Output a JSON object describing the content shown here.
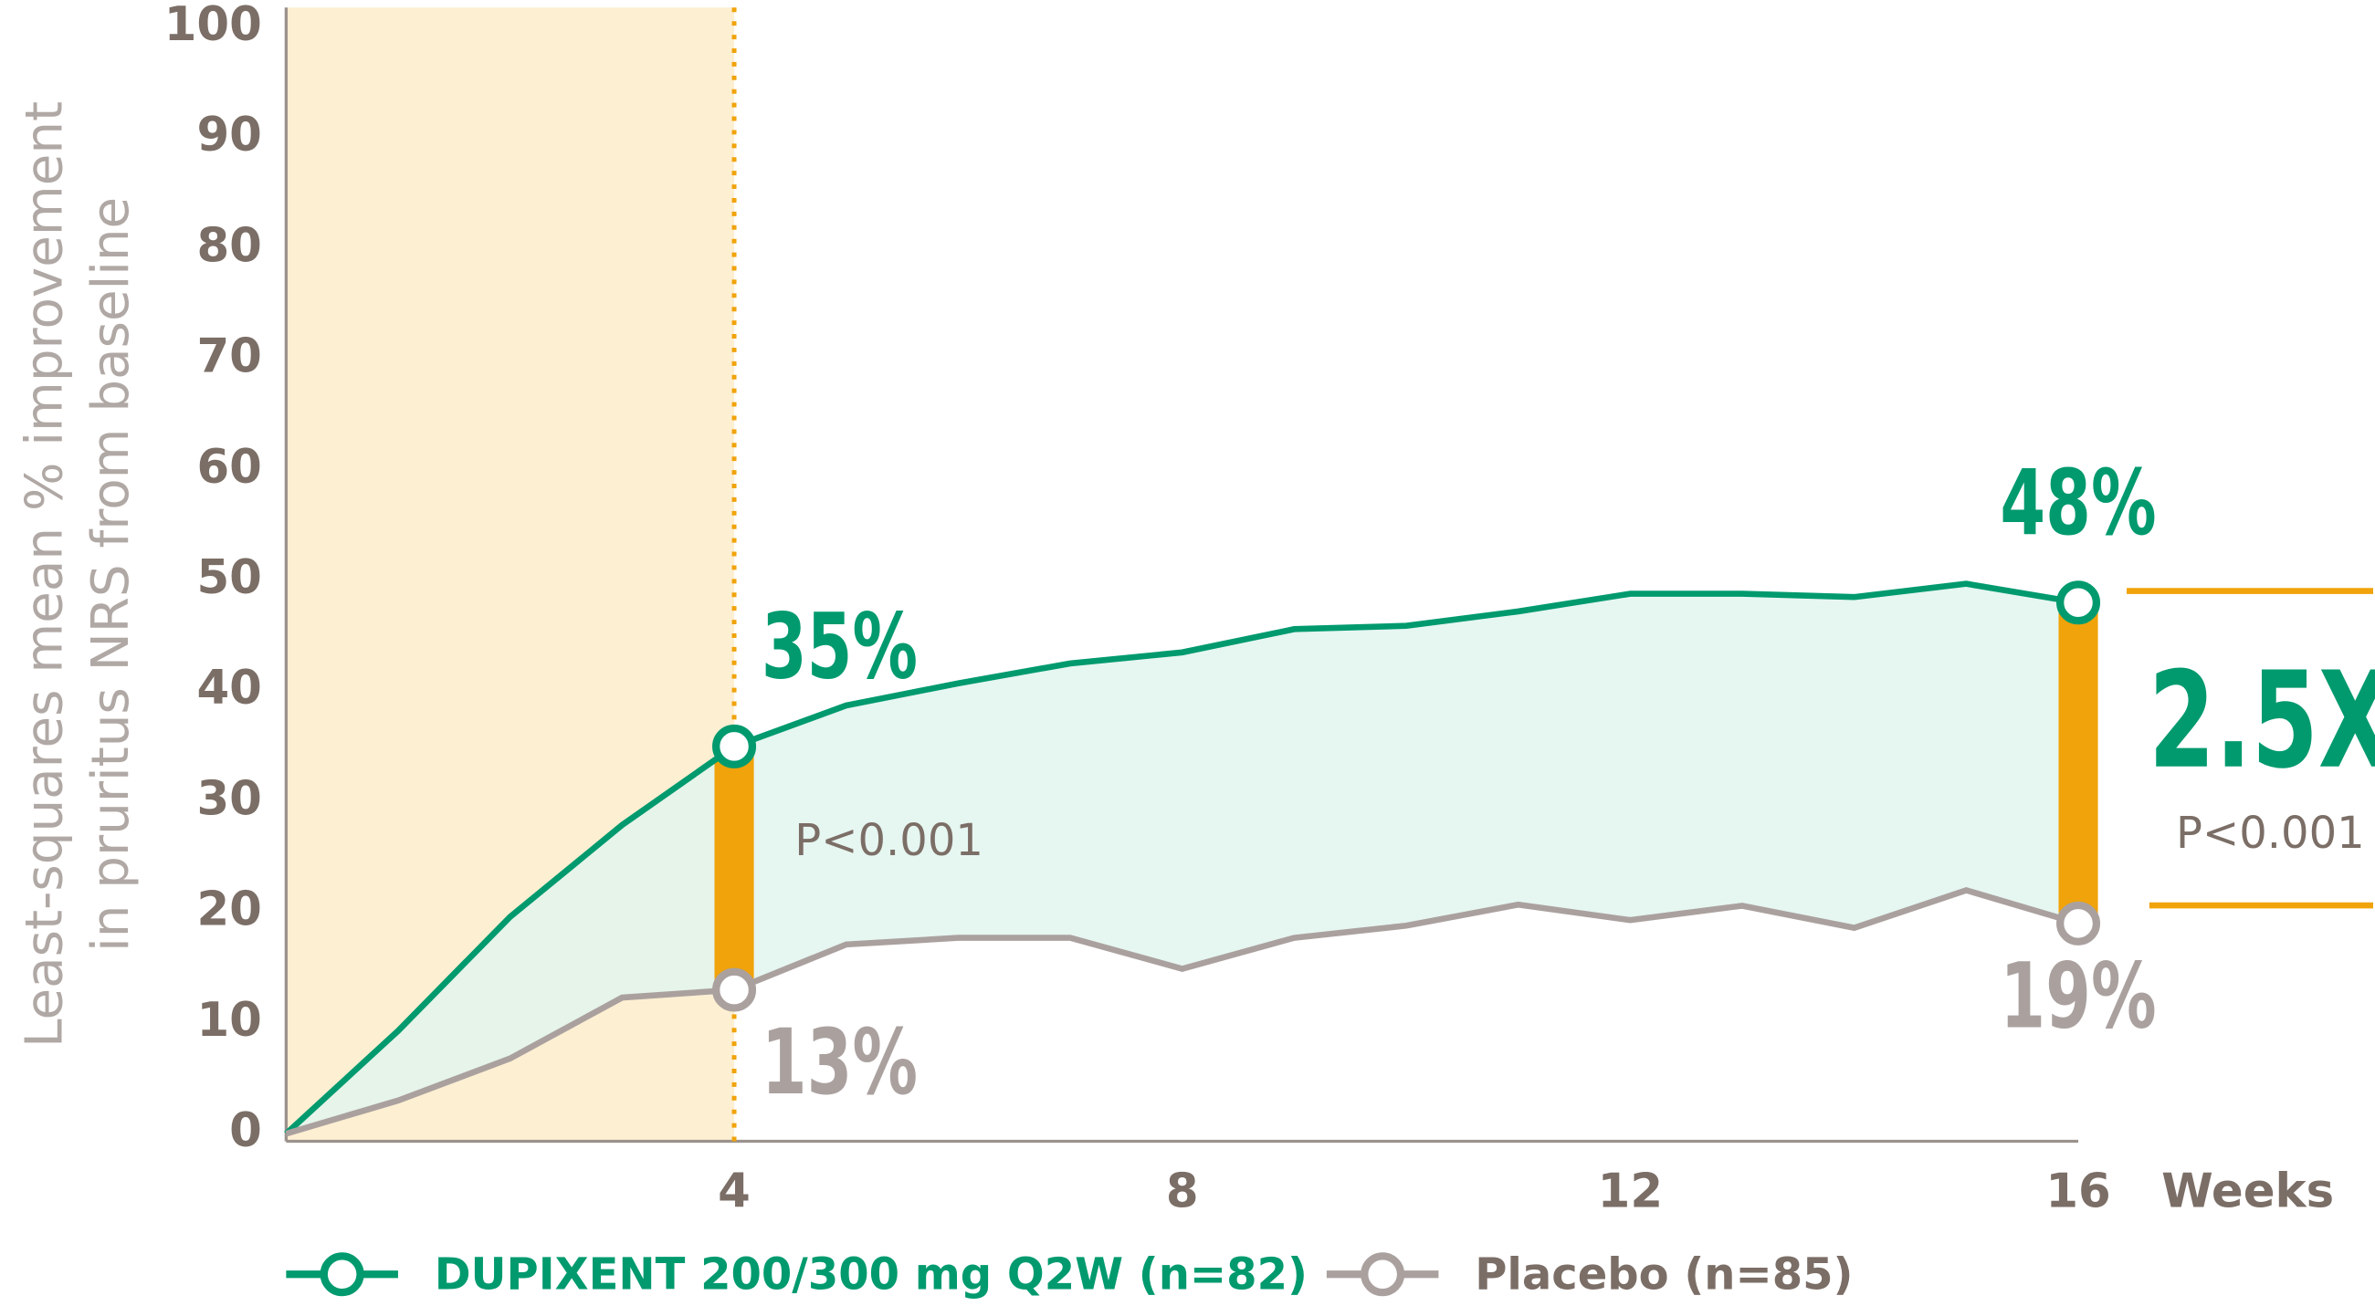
{
  "chart_data": {
    "type": "line",
    "ylabel": [
      "Least-squares mean % improvement",
      "in pruritus NRS from baseline"
    ],
    "xlabel": "Weeks",
    "x": [
      0,
      1,
      2,
      3,
      4,
      5,
      6,
      7,
      8,
      9,
      10,
      11,
      12,
      13,
      14,
      15,
      16
    ],
    "xlim": [
      0,
      16
    ],
    "xticks": [
      4,
      8,
      12,
      16
    ],
    "ylim": [
      0,
      100
    ],
    "yticks": [
      0,
      10,
      20,
      30,
      40,
      50,
      60,
      70,
      80,
      90,
      100
    ],
    "highlight_x": [
      0,
      4
    ],
    "highlight_color": "#fdefd2",
    "gap_color": "#e2f4ee",
    "bracket_color": "#f0a30a",
    "series": [
      {
        "name": "DUPIXENT 200/300 mg Q2W (n=82)",
        "color": "#009a6e",
        "values": [
          0,
          9.3,
          19.6,
          27.9,
          35,
          38.7,
          40.7,
          42.5,
          43.5,
          45.6,
          45.9,
          47.2,
          48.8,
          48.8,
          48.5,
          49.7,
          48
        ],
        "value_labels": [
          null,
          null,
          null,
          null,
          "35%",
          null,
          null,
          null,
          null,
          null,
          null,
          null,
          null,
          null,
          null,
          null,
          "48%"
        ]
      },
      {
        "name": "Placebo (n=85)",
        "color": "#aaa19f",
        "values": [
          0,
          3,
          6.8,
          12.3,
          13,
          17.1,
          17.7,
          17.7,
          14.9,
          17.7,
          18.8,
          20.7,
          19.3,
          20.6,
          18.6,
          22,
          19
        ],
        "value_labels": [
          null,
          null,
          null,
          null,
          "13%",
          null,
          null,
          null,
          null,
          null,
          null,
          null,
          null,
          null,
          null,
          null,
          "19%"
        ]
      }
    ],
    "annotations": [
      {
        "x": 4,
        "text": "P<0.001"
      },
      {
        "x": 16,
        "text": "2.5X"
      },
      {
        "x": 16,
        "text": "P<0.001"
      }
    ]
  }
}
